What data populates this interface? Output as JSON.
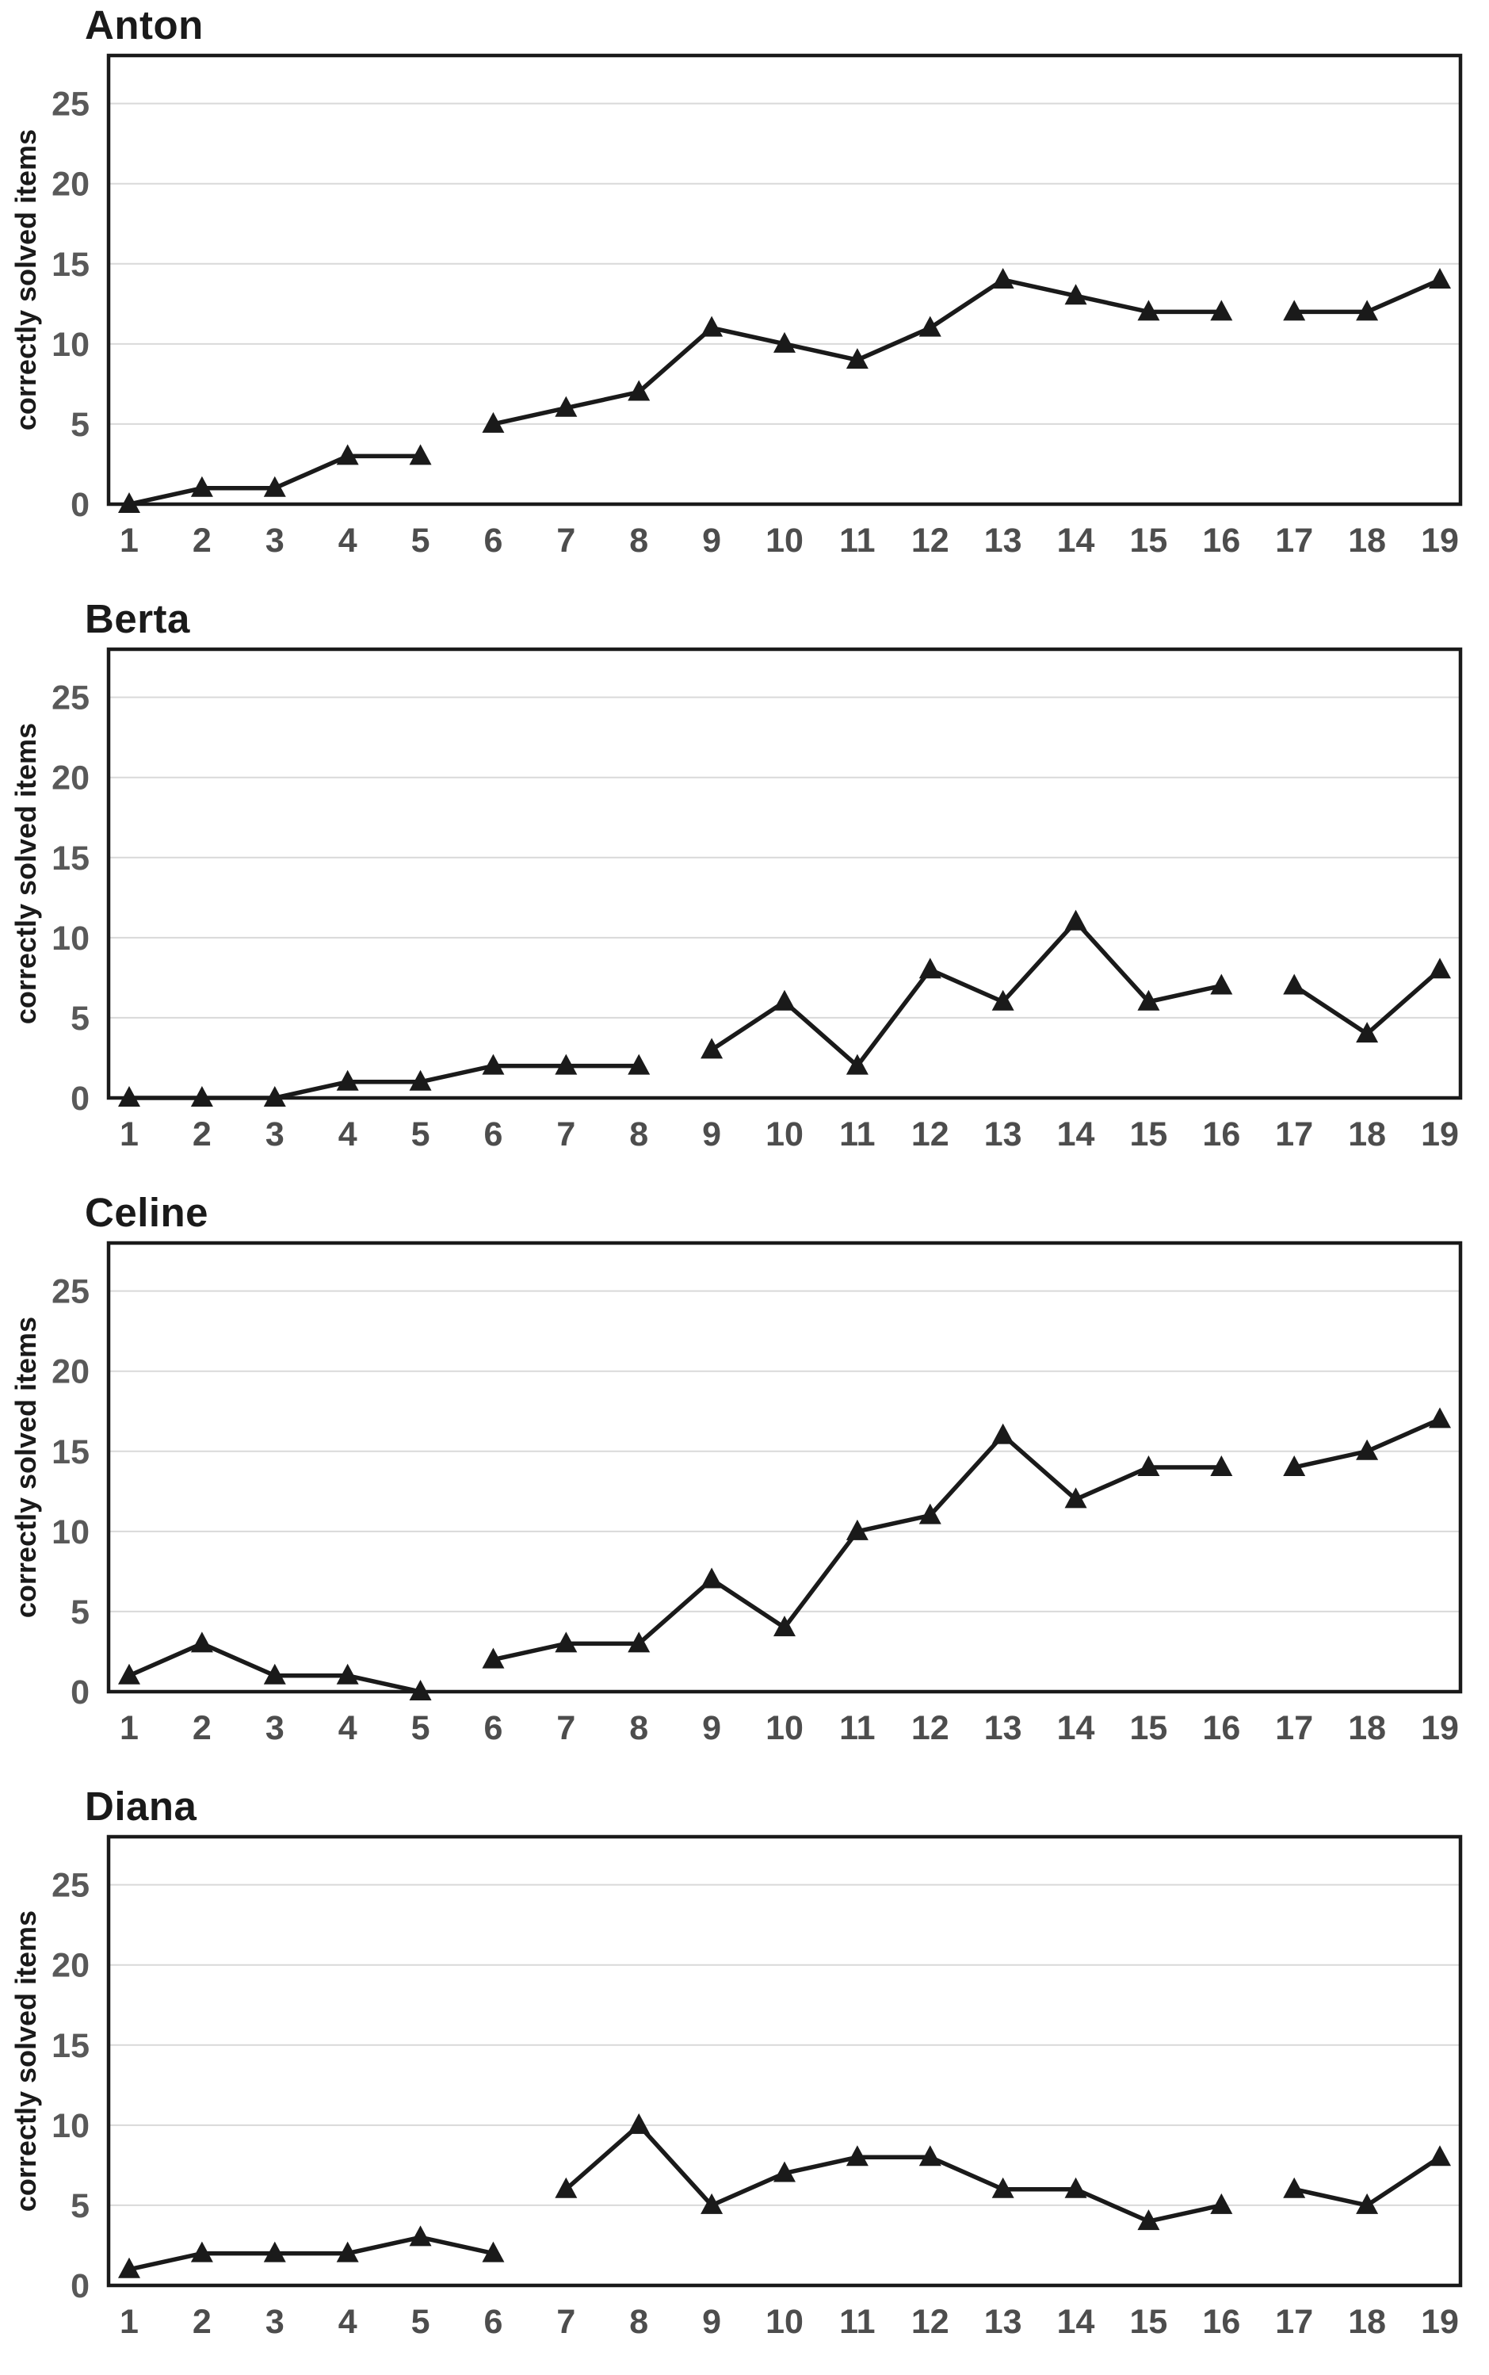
{
  "figure": {
    "background": "#ffffff",
    "y_axis_label": "correctly solved items",
    "colors": {
      "line": "#1a1a1a",
      "marker": "#1a1a1a",
      "grid": "#d9d9d9",
      "border": "#1a1a1a",
      "y_tick_text": "#595959",
      "x_tick_text": "#4d4d4d",
      "title_text": "#1a1a1a"
    }
  },
  "chart_data": [
    {
      "type": "line",
      "title": "Anton",
      "ylabel": "correctly solved items",
      "xlabel": "",
      "marker": "triangle",
      "grid": true,
      "legend": "none",
      "ylim": [
        0,
        28
      ],
      "yticks": [
        0,
        5,
        10,
        15,
        20,
        25
      ],
      "xticks": [
        1,
        2,
        3,
        4,
        5,
        6,
        7,
        8,
        9,
        10,
        11,
        12,
        13,
        14,
        15,
        16,
        17,
        18,
        19
      ],
      "segments": [
        {
          "x": [
            1,
            2,
            3,
            4,
            5
          ],
          "y": [
            0,
            1,
            1,
            3,
            3
          ]
        },
        {
          "x": [
            6,
            7,
            8,
            9,
            10,
            11,
            12,
            13,
            14,
            15,
            16
          ],
          "y": [
            5,
            6,
            7,
            11,
            10,
            9,
            11,
            14,
            13,
            12,
            12
          ]
        },
        {
          "x": [
            17,
            18,
            19
          ],
          "y": [
            12,
            12,
            14
          ]
        }
      ]
    },
    {
      "type": "line",
      "title": "Berta",
      "ylabel": "correctly solved items",
      "xlabel": "",
      "marker": "triangle",
      "grid": true,
      "legend": "none",
      "ylim": [
        0,
        28
      ],
      "yticks": [
        0,
        5,
        10,
        15,
        20,
        25
      ],
      "xticks": [
        1,
        2,
        3,
        4,
        5,
        6,
        7,
        8,
        9,
        10,
        11,
        12,
        13,
        14,
        15,
        16,
        17,
        18,
        19
      ],
      "segments": [
        {
          "x": [
            1,
            2,
            3,
            4,
            5,
            6,
            7,
            8
          ],
          "y": [
            0,
            0,
            0,
            1,
            1,
            2,
            2,
            2
          ]
        },
        {
          "x": [
            9,
            10,
            11,
            12,
            13,
            14,
            15,
            16
          ],
          "y": [
            3,
            6,
            2,
            8,
            6,
            11,
            6,
            7
          ]
        },
        {
          "x": [
            17,
            18,
            19
          ],
          "y": [
            7,
            4,
            8
          ]
        }
      ]
    },
    {
      "type": "line",
      "title": "Celine",
      "ylabel": "correctly solved items",
      "xlabel": "",
      "marker": "triangle",
      "grid": true,
      "legend": "none",
      "ylim": [
        0,
        28
      ],
      "yticks": [
        0,
        5,
        10,
        15,
        20,
        25
      ],
      "xticks": [
        1,
        2,
        3,
        4,
        5,
        6,
        7,
        8,
        9,
        10,
        11,
        12,
        13,
        14,
        15,
        16,
        17,
        18,
        19
      ],
      "segments": [
        {
          "x": [
            1,
            2,
            3,
            4,
            5
          ],
          "y": [
            1,
            3,
            1,
            1,
            0
          ]
        },
        {
          "x": [
            6,
            7,
            8,
            9,
            10,
            11,
            12,
            13,
            14,
            15,
            16
          ],
          "y": [
            2,
            3,
            3,
            7,
            4,
            10,
            11,
            16,
            12,
            14,
            14
          ]
        },
        {
          "x": [
            17,
            18,
            19
          ],
          "y": [
            14,
            15,
            17
          ]
        }
      ]
    },
    {
      "type": "line",
      "title": "Diana",
      "ylabel": "correctly solved items",
      "xlabel": "",
      "marker": "triangle",
      "grid": true,
      "legend": "none",
      "ylim": [
        0,
        28
      ],
      "yticks": [
        0,
        5,
        10,
        15,
        20,
        25
      ],
      "xticks": [
        1,
        2,
        3,
        4,
        5,
        6,
        7,
        8,
        9,
        10,
        11,
        12,
        13,
        14,
        15,
        16,
        17,
        18,
        19
      ],
      "segments": [
        {
          "x": [
            1,
            2,
            3,
            4,
            5,
            6
          ],
          "y": [
            1,
            2,
            2,
            2,
            3,
            2
          ]
        },
        {
          "x": [
            7,
            8,
            9,
            10,
            11,
            12,
            13,
            14,
            15,
            16
          ],
          "y": [
            6,
            10,
            5,
            7,
            8,
            8,
            6,
            6,
            4,
            5
          ]
        },
        {
          "x": [
            17,
            18,
            19
          ],
          "y": [
            6,
            5,
            8
          ]
        }
      ]
    }
  ]
}
